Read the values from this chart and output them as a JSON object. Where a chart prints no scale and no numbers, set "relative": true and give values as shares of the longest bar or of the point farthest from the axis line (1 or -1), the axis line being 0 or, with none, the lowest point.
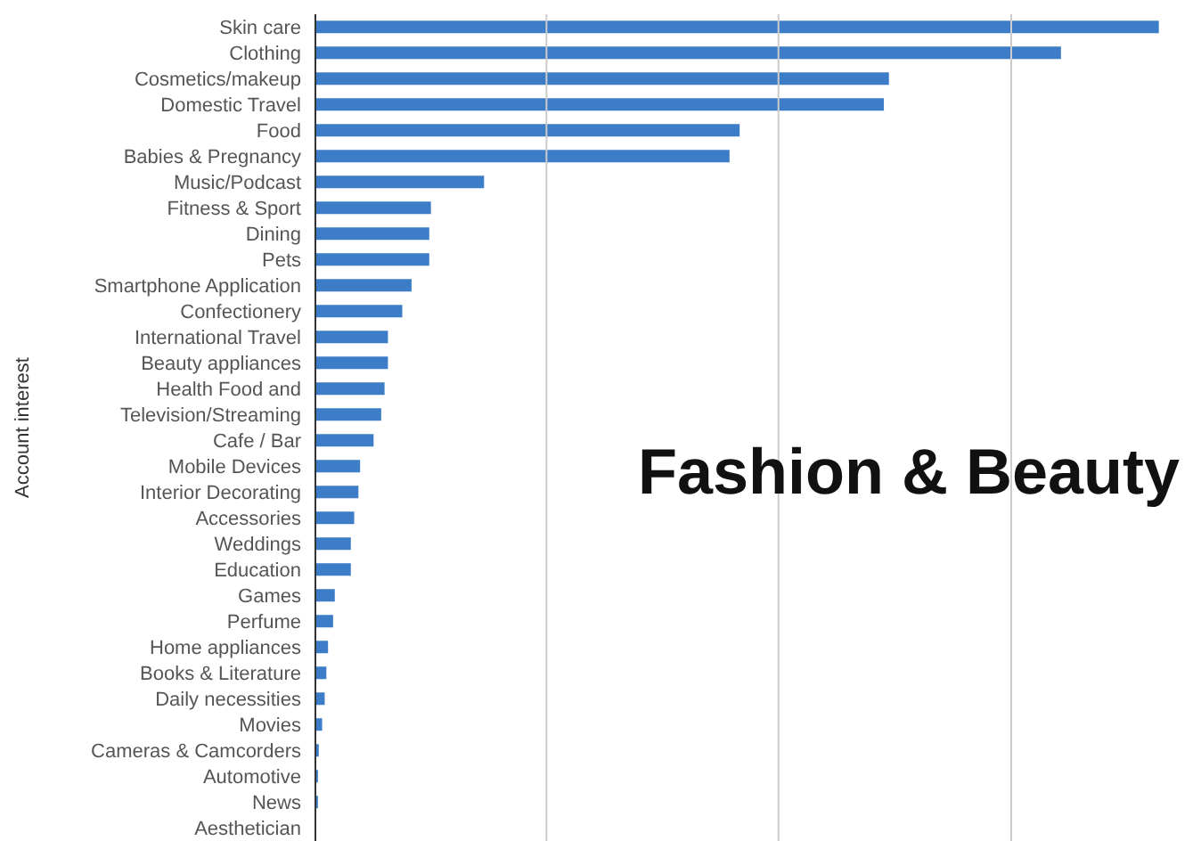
{
  "chart_data": {
    "type": "bar",
    "orientation": "horizontal",
    "relative": true,
    "title": "Fashion & Beauty",
    "ylabel": "Account interest",
    "ref_lines": [
      {
        "axis": "x",
        "value": 0.274,
        "color": "#cccccc"
      },
      {
        "axis": "x",
        "value": 0.549,
        "color": "#cccccc"
      },
      {
        "axis": "x",
        "value": 0.825,
        "color": "#cccccc"
      }
    ],
    "color": "#3d7dc8",
    "categories": [
      "Skin care",
      "Clothing",
      "Cosmetics/makeup",
      "Domestic Travel",
      "Food",
      "Babies & Pregnancy",
      "Music/Podcast",
      "Fitness & Sport",
      "Dining",
      "Pets",
      "Smartphone Application",
      "Confectionery",
      "International Travel",
      "Beauty appliances",
      "Health Food and",
      "Television/Streaming",
      "Cafe / Bar",
      "Mobile Devices",
      "Interior Decorating",
      "Accessories",
      "Weddings",
      "Education",
      "Games",
      "Perfume",
      "Home appliances",
      "Books & Literature",
      "Daily necessities",
      "Movies",
      "Cameras & Camcorders",
      "Automotive",
      "News",
      "Aesthetician"
    ],
    "values": [
      1,
      0.884,
      0.68,
      0.674,
      0.503,
      0.491,
      0.2,
      0.137,
      0.135,
      0.135,
      0.114,
      0.103,
      0.086,
      0.086,
      0.082,
      0.078,
      0.069,
      0.053,
      0.051,
      0.046,
      0.042,
      0.042,
      0.023,
      0.021,
      0.015,
      0.013,
      0.011,
      0.008,
      0.004,
      0.003,
      0.003,
      0
    ]
  }
}
